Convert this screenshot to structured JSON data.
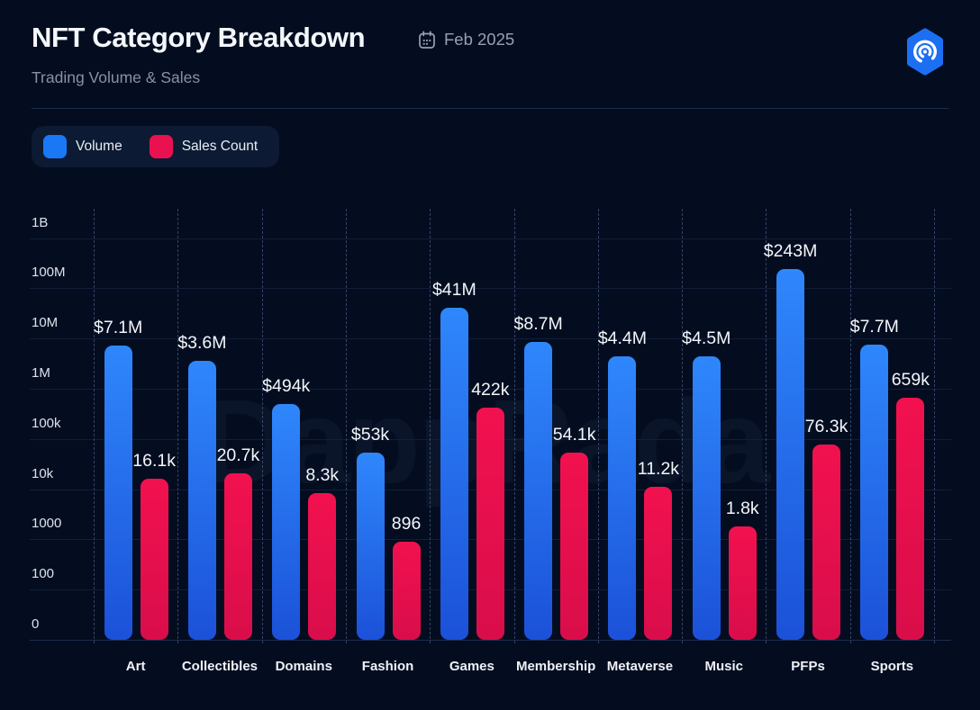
{
  "header": {
    "title": "NFT Category Breakdown",
    "date_label": "Feb 2025",
    "subtitle": "Trading Volume & Sales"
  },
  "legend": [
    {
      "label": "Volume",
      "color": "#1a78f5"
    },
    {
      "label": "Sales Count",
      "color": "#ea1150"
    }
  ],
  "watermark": "DappRadar",
  "colors": {
    "background": "#040d20",
    "accent_blue": "#1d6ff2",
    "volume_bar_top": "#2f87fc",
    "volume_bar_bottom": "#1b51d8",
    "sales_bar_top": "#f2114f",
    "sales_bar_bottom": "#d90d4b",
    "grid_line": "#121e37",
    "dashed_line": "#5c709c"
  },
  "chart_data": {
    "type": "bar",
    "scale": "log10",
    "title": "NFT Category Breakdown",
    "subtitle": "Trading Volume & Sales",
    "period": "Feb 2025",
    "legend_position": "top-left",
    "grid": true,
    "categories": [
      "Art",
      "Collectibles",
      "Domains",
      "Fashion",
      "Games",
      "Membership",
      "Metaverse",
      "Music",
      "PFPs",
      "Sports"
    ],
    "series": [
      {
        "name": "Volume",
        "unit": "USD",
        "values": [
          7100000,
          3600000,
          494000,
          53000,
          41000000,
          8700000,
          4400000,
          4500000,
          243000000,
          7700000
        ],
        "labels": [
          "$7.1M",
          "$3.6M",
          "$494k",
          "$53k",
          "$41M",
          "$8.7M",
          "$4.4M",
          "$4.5M",
          "$243M",
          "$7.7M"
        ]
      },
      {
        "name": "Sales Count",
        "unit": "sales",
        "values": [
          16100,
          20700,
          8300,
          896,
          422000,
          54100,
          11200,
          1800,
          76300,
          659000
        ],
        "labels": [
          "16.1k",
          "20.7k",
          "8.3k",
          "896",
          "422k",
          "54.1k",
          "11.2k",
          "1.8k",
          "76.3k",
          "659k"
        ]
      }
    ],
    "y_ticks": [
      "0",
      "100",
      "1000",
      "10k",
      "100k",
      "1M",
      "10M",
      "100M",
      "1B"
    ],
    "y_axis_range": [
      0,
      1000000000
    ]
  }
}
